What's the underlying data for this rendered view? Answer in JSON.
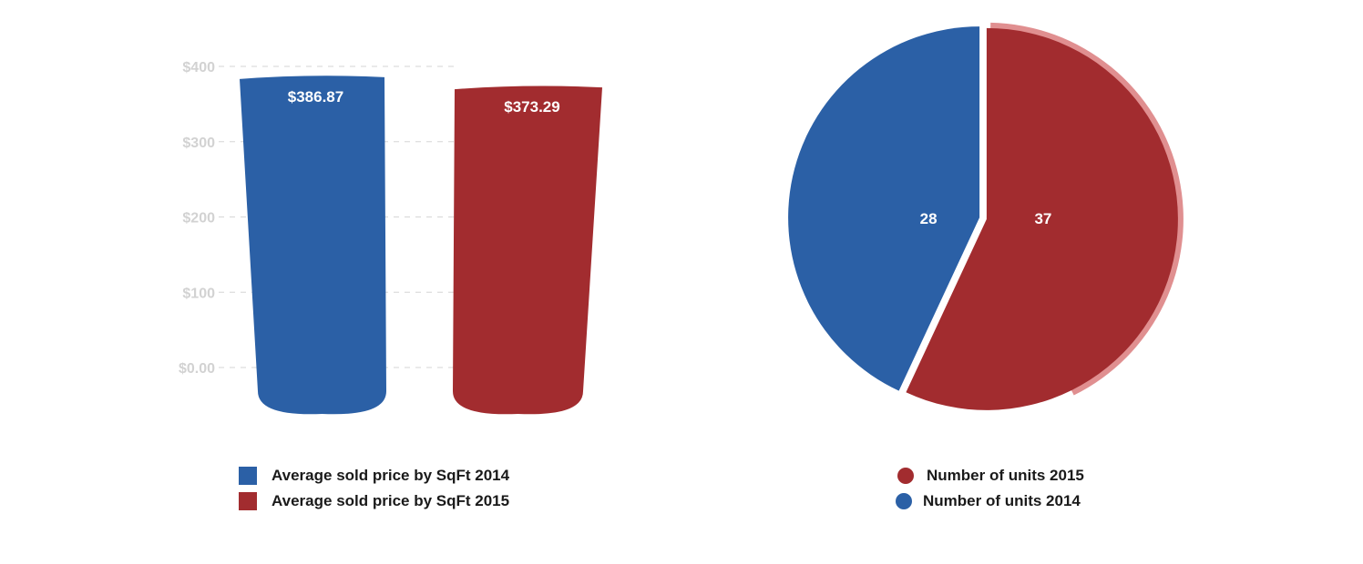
{
  "colors": {
    "blue": "#2b60a6",
    "red": "#a22c2f",
    "grid": "#d6d6d6",
    "tick": "#d2d2d2"
  },
  "chart_data": [
    {
      "type": "bar",
      "categories": [
        "Average sold price by SqFt 2014",
        "Average sold price by SqFt 2015"
      ],
      "values": [
        386.87,
        373.29
      ],
      "data_labels": [
        "$386.87",
        "$373.29"
      ],
      "colors": [
        "#2b60a6",
        "#a22c2f"
      ],
      "y_ticks": [
        {
          "value": 400,
          "label": "$400"
        },
        {
          "value": 300,
          "label": "$300"
        },
        {
          "value": 200,
          "label": "$200"
        },
        {
          "value": 100,
          "label": "$100"
        },
        {
          "value": 0,
          "label": "$0.00"
        }
      ],
      "ylim": [
        0,
        400
      ],
      "grid": true,
      "legend_position": "bottom",
      "legend": [
        {
          "label": "Average sold price by SqFt 2014",
          "color": "#2b60a6"
        },
        {
          "label": "Average sold price by SqFt 2015",
          "color": "#a22c2f"
        }
      ]
    },
    {
      "type": "pie",
      "slices": [
        {
          "name": "Number of units 2015",
          "value": 37,
          "label": "37",
          "color": "#a22c2f"
        },
        {
          "name": "Number of units 2014",
          "value": 28,
          "label": "28",
          "color": "#2b60a6"
        }
      ],
      "legend_position": "bottom",
      "legend": [
        {
          "label": "Number of units 2015",
          "color": "#a22c2f"
        },
        {
          "label": "Number of units 2014",
          "color": "#2b60a6"
        }
      ]
    }
  ]
}
